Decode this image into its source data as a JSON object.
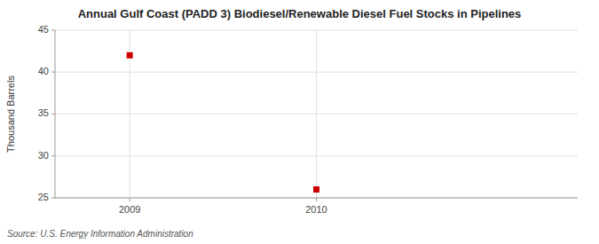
{
  "chart_data": {
    "type": "scatter",
    "title": "Annual Gulf Coast (PADD 3) Biodiesel/Renewable Diesel Fuel Stocks in Pipelines",
    "y_label": "Thousand Barrels",
    "annotations": [
      "Source: U.S. Energy Information Administration"
    ],
    "x": [
      2009,
      2010
    ],
    "values": [
      42,
      26
    ],
    "xlim": [
      2008.6,
      2011.4
    ],
    "ylim": [
      25,
      45
    ],
    "xticks": [
      2009,
      2010
    ],
    "yticks": [
      25,
      30,
      35,
      40,
      45
    ],
    "color": "#cc0000",
    "marker": "square",
    "grid": true
  }
}
